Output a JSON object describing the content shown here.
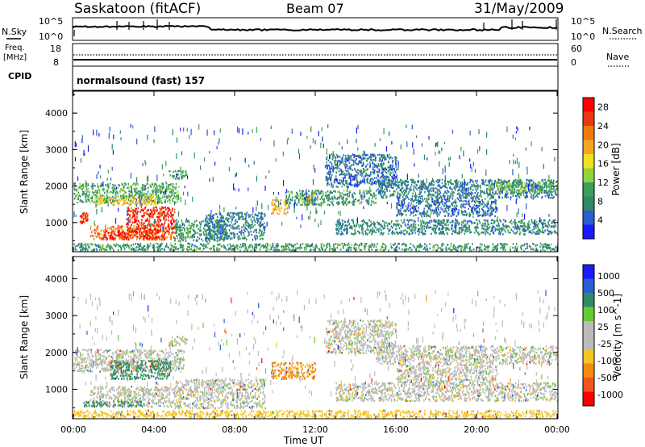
{
  "header": {
    "station": "Saskatoon (fitACF)",
    "beam": "Beam 07",
    "date": "31/May/2009"
  },
  "summary_panel": {
    "left_label_nsky": "N.Sky",
    "left_ticks_nsky": [
      "10^5",
      "10^0"
    ],
    "right_ticks_nsearch": [
      "10^5",
      "10^0"
    ],
    "right_label_nsearch": "N.Search",
    "left_label_freq": "Freq.",
    "left_unit_freq": "[MHz]",
    "left_ticks_freq": [
      "18",
      "8"
    ],
    "right_ticks_nave": [
      "60",
      "0"
    ],
    "right_label_nave": "Nave",
    "cpid_label": "CPID",
    "cpid_value": "normalsound (fast) 157"
  },
  "colors": {
    "power_scale": [
      "#1a1aff",
      "#2a5fd0",
      "#2f8a66",
      "#3c9e5a",
      "#8fd43a",
      "#f0e020",
      "#f5a623",
      "#f07a10",
      "#e83a10",
      "#ff0000"
    ],
    "velocity_scale": [
      "#1a1aff",
      "#2a5fd0",
      "#2f8a66",
      "#66cc33",
      "#bbbbbb",
      "#bbbbbb",
      "#f5c623",
      "#f58a13",
      "#f0561a",
      "#ff0000"
    ]
  },
  "chart_data": [
    {
      "type": "heatmap",
      "panel": "power",
      "ylabel": "Slant Range [km]",
      "yticks": [
        "1000",
        "2000",
        "3000",
        "4000"
      ],
      "ylim": [
        200,
        4600
      ],
      "xticks": [
        "00:00",
        "04:00",
        "08:00",
        "12:00",
        "16:00",
        "20:00",
        "00:00"
      ],
      "xlim": [
        0,
        24
      ],
      "colorbar": {
        "label": "Power [dB]",
        "ticks": [
          "4",
          "8",
          "12",
          "16",
          "20",
          "24",
          "28"
        ],
        "range": [
          0,
          30
        ]
      },
      "regions": [
        {
          "t0": 0.0,
          "t1": 5.2,
          "r0": 1550,
          "r1": 2100,
          "level": 10
        },
        {
          "t0": 1.0,
          "t1": 4.2,
          "r0": 1500,
          "r1": 1750,
          "level": 18
        },
        {
          "t0": 0.8,
          "t1": 5.0,
          "r0": 550,
          "r1": 950,
          "level": 22
        },
        {
          "t0": 2.6,
          "t1": 5.0,
          "r0": 750,
          "r1": 1450,
          "level": 27
        },
        {
          "t0": 1.5,
          "t1": 4.5,
          "r0": 550,
          "r1": 800,
          "level": 28
        },
        {
          "t0": 0.3,
          "t1": 0.7,
          "r0": 1000,
          "r1": 1300,
          "level": 26
        },
        {
          "t0": 4.7,
          "t1": 5.6,
          "r0": 2200,
          "r1": 2450,
          "level": 10
        },
        {
          "t0": 5.0,
          "t1": 7.5,
          "r0": 500,
          "r1": 1100,
          "level": 9
        },
        {
          "t0": 6.5,
          "t1": 9.5,
          "r0": 550,
          "r1": 1300,
          "level": 7
        },
        {
          "t0": 0.0,
          "t1": 24.0,
          "r0": 250,
          "r1": 450,
          "level": 9
        },
        {
          "t0": 9.8,
          "t1": 10.6,
          "r0": 1250,
          "r1": 1650,
          "level": 19
        },
        {
          "t0": 11.2,
          "t1": 12.0,
          "r0": 1550,
          "r1": 1800,
          "level": 19
        },
        {
          "t0": 10.5,
          "t1": 15.0,
          "r0": 1500,
          "r1": 1900,
          "level": 9
        },
        {
          "t0": 13.0,
          "t1": 24.0,
          "r0": 700,
          "r1": 1100,
          "level": 8
        },
        {
          "t0": 12.5,
          "t1": 16.0,
          "r0": 2000,
          "r1": 2900,
          "level": 6
        },
        {
          "t0": 15.0,
          "t1": 24.0,
          "r0": 1700,
          "r1": 2200,
          "level": 7
        },
        {
          "t0": 16.0,
          "t1": 21.0,
          "r0": 1200,
          "r1": 1700,
          "level": 6
        },
        {
          "t0": 20.5,
          "t1": 24.0,
          "r0": 1850,
          "r1": 2100,
          "level": 12
        }
      ]
    },
    {
      "type": "heatmap",
      "panel": "velocity",
      "ylabel": "Slant Range [km]",
      "yticks": [
        "1000",
        "2000",
        "3000",
        "4000"
      ],
      "ylim": [
        200,
        4600
      ],
      "xticks": [
        "00:00",
        "04:00",
        "08:00",
        "12:00",
        "16:00",
        "20:00",
        "00:00"
      ],
      "xlim": [
        0,
        24
      ],
      "xlabel": "Time UT",
      "colorbar": {
        "label": "Velocity [m s^-1]",
        "ticks": [
          "1000",
          "500",
          "100",
          "25",
          "-25",
          "-100",
          "-500",
          "-1000"
        ],
        "range": [
          -1250,
          1250
        ]
      },
      "regions": [
        {
          "t0": 0.0,
          "t1": 5.5,
          "r0": 1500,
          "r1": 2100,
          "vel": 0
        },
        {
          "t0": 1.8,
          "t1": 4.8,
          "r0": 1300,
          "r1": 1800,
          "vel": 150
        },
        {
          "t0": 0.8,
          "t1": 5.0,
          "r0": 550,
          "r1": 1100,
          "vel": 0
        },
        {
          "t0": 0.5,
          "t1": 3.5,
          "r0": 550,
          "r1": 700,
          "vel": 150
        },
        {
          "t0": 5.0,
          "t1": 9.5,
          "r0": 500,
          "r1": 1300,
          "vel": 0
        },
        {
          "t0": 0.0,
          "t1": 24.0,
          "r0": 250,
          "r1": 450,
          "vel": -60
        },
        {
          "t0": 9.8,
          "t1": 12.0,
          "r0": 1300,
          "r1": 1750,
          "vel": -120
        },
        {
          "t0": 12.5,
          "t1": 16.0,
          "r0": 2000,
          "r1": 2900,
          "vel": 0
        },
        {
          "t0": 13.0,
          "t1": 24.0,
          "r0": 700,
          "r1": 1200,
          "vel": 0
        },
        {
          "t0": 15.0,
          "t1": 24.0,
          "r0": 1700,
          "r1": 2200,
          "vel": 0
        },
        {
          "t0": 16.0,
          "t1": 21.0,
          "r0": 1200,
          "r1": 1700,
          "vel": 0
        },
        {
          "t0": 4.7,
          "t1": 5.6,
          "r0": 2200,
          "r1": 2450,
          "vel": 0
        }
      ]
    }
  ]
}
